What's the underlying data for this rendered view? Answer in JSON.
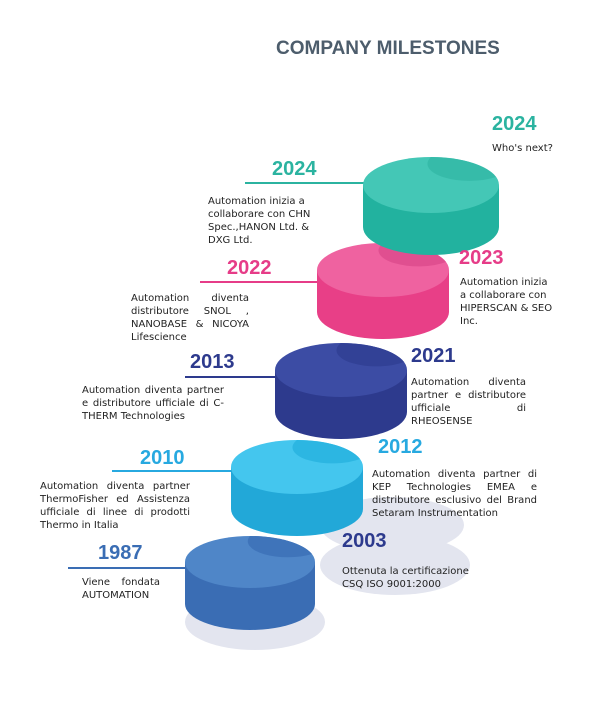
{
  "title": "COMPANY MILESTONES",
  "milestones": [
    {
      "year": "2024",
      "text": "Who's next?"
    },
    {
      "year": "2024",
      "text": "Automation inizia a collaborare con CHN Spec.,HANON Ltd. & DXG Ltd."
    },
    {
      "year": "2023",
      "text": "Automation inizia a collaborare con HIPERSCAN & SEO Inc."
    },
    {
      "year": "2022",
      "text": "Automation diventa distributore SNOL , NANOBASE & NICOYA Lifescience"
    },
    {
      "year": "2021",
      "text": "Automation diventa partner e distributore ufficiale di RHEOSENSE"
    },
    {
      "year": "2013",
      "text": "Automation diventa partner e distributore ufficiale di C-THERM Technologies"
    },
    {
      "year": "2012",
      "text": "Automation diventa partner di KEP Technologies EMEA e distributore esclusivo del Brand Setaram Instrumentation"
    },
    {
      "year": "2010",
      "text": "Automation diventa partner ThermoFisher ed Assistenza ufficiale di linee di prodotti Thermo in Italia"
    },
    {
      "year": "2003",
      "text": "Ottenuta la certificazione CSQ ISO 9001:2000"
    },
    {
      "year": "1987",
      "text": "Viene fondata AUTOMATION"
    }
  ]
}
